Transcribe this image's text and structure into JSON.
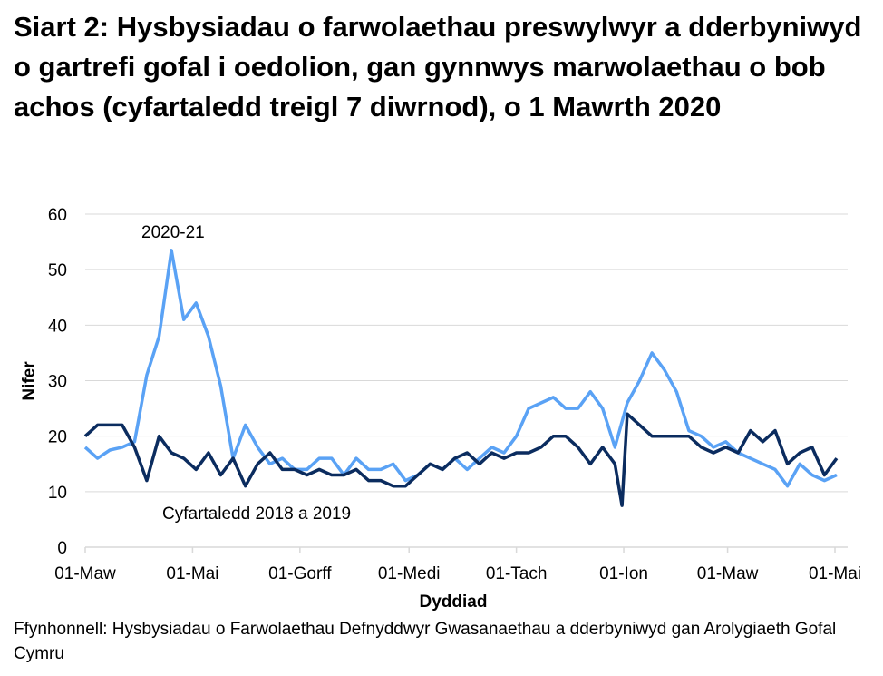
{
  "chart_data": {
    "type": "line",
    "title": "Siart 2: Hysbysiadau o farwolaethau preswylwyr a dderbyniwyd o gartrefi gofal i oedolion, gan gynnwys marwolaethau o bob achos (cyfartaledd treigl 7 diwrnod), o 1 Mawrth 2020",
    "xlabel": "Dyddiad",
    "ylabel": "Nifer",
    "ylim": [
      0,
      60
    ],
    "yticks": [
      0,
      10,
      20,
      30,
      40,
      50,
      60
    ],
    "xticks": [
      {
        "date": "2020-03-01",
        "label": "01-Maw"
      },
      {
        "date": "2020-05-01",
        "label": "01-Mai"
      },
      {
        "date": "2020-07-01",
        "label": "01-Gorff"
      },
      {
        "date": "2020-09-01",
        "label": "01-Medi"
      },
      {
        "date": "2020-11-01",
        "label": "01-Tach"
      },
      {
        "date": "2021-01-01",
        "label": "01-Ion"
      },
      {
        "date": "2021-03-01",
        "label": "01-Maw"
      },
      {
        "date": "2021-05-01",
        "label": "01-Mai"
      }
    ],
    "xlim": [
      "2020-03-01",
      "2021-05-05"
    ],
    "grid": "horizontal",
    "series": [
      {
        "name": "2020-21",
        "color": "#5aa2f5",
        "x": [
          "2020-03-01",
          "2020-03-08",
          "2020-03-15",
          "2020-03-22",
          "2020-03-29",
          "2020-04-05",
          "2020-04-12",
          "2020-04-19",
          "2020-04-26",
          "2020-05-03",
          "2020-05-10",
          "2020-05-17",
          "2020-05-24",
          "2020-05-31",
          "2020-06-07",
          "2020-06-14",
          "2020-06-21",
          "2020-06-28",
          "2020-07-05",
          "2020-07-12",
          "2020-07-19",
          "2020-07-26",
          "2020-08-02",
          "2020-08-09",
          "2020-08-16",
          "2020-08-23",
          "2020-08-30",
          "2020-09-06",
          "2020-09-13",
          "2020-09-20",
          "2020-09-27",
          "2020-10-04",
          "2020-10-11",
          "2020-10-18",
          "2020-10-25",
          "2020-11-01",
          "2020-11-08",
          "2020-11-15",
          "2020-11-22",
          "2020-11-29",
          "2020-12-06",
          "2020-12-13",
          "2020-12-20",
          "2020-12-27",
          "2021-01-03",
          "2021-01-10",
          "2021-01-17",
          "2021-01-24",
          "2021-01-31",
          "2021-02-07",
          "2021-02-14",
          "2021-02-21",
          "2021-02-28",
          "2021-03-07",
          "2021-03-14",
          "2021-03-21",
          "2021-03-28",
          "2021-04-04",
          "2021-04-11",
          "2021-04-18",
          "2021-04-25",
          "2021-05-02"
        ],
        "values": [
          18,
          16,
          17.5,
          18,
          19,
          31,
          38,
          53.5,
          41,
          44,
          38,
          29,
          16,
          22,
          18,
          15,
          16,
          14,
          14,
          16,
          16,
          13,
          16,
          14,
          14,
          15,
          12,
          13,
          15,
          14,
          16,
          14,
          16,
          18,
          17,
          20,
          25,
          26,
          27,
          25,
          25,
          28,
          25,
          18,
          26,
          30,
          35,
          32,
          28,
          21,
          20,
          18,
          19,
          17,
          16,
          15,
          14,
          11,
          15,
          13,
          12,
          13
        ]
      },
      {
        "name": "Cyfartaledd 2018 a 2019",
        "color": "#0b2c5f",
        "x": [
          "2020-03-01",
          "2020-03-08",
          "2020-03-15",
          "2020-03-22",
          "2020-03-29",
          "2020-04-05",
          "2020-04-12",
          "2020-04-19",
          "2020-04-26",
          "2020-05-03",
          "2020-05-10",
          "2020-05-17",
          "2020-05-24",
          "2020-05-31",
          "2020-06-07",
          "2020-06-14",
          "2020-06-21",
          "2020-06-28",
          "2020-07-05",
          "2020-07-12",
          "2020-07-19",
          "2020-07-26",
          "2020-08-02",
          "2020-08-09",
          "2020-08-16",
          "2020-08-23",
          "2020-08-30",
          "2020-09-06",
          "2020-09-13",
          "2020-09-20",
          "2020-09-27",
          "2020-10-04",
          "2020-10-11",
          "2020-10-18",
          "2020-10-25",
          "2020-11-01",
          "2020-11-08",
          "2020-11-15",
          "2020-11-22",
          "2020-11-29",
          "2020-12-06",
          "2020-12-13",
          "2020-12-20",
          "2020-12-27",
          "2020-12-31",
          "2021-01-03",
          "2021-01-10",
          "2021-01-17",
          "2021-01-24",
          "2021-01-31",
          "2021-02-07",
          "2021-02-14",
          "2021-02-21",
          "2021-02-28",
          "2021-03-07",
          "2021-03-14",
          "2021-03-21",
          "2021-03-28",
          "2021-04-04",
          "2021-04-11",
          "2021-04-18",
          "2021-04-25",
          "2021-05-02"
        ],
        "values": [
          20,
          22,
          22,
          22,
          18,
          12,
          20,
          17,
          16,
          14,
          17,
          13,
          16,
          11,
          15,
          17,
          14,
          14,
          13,
          14,
          13,
          13,
          14,
          12,
          12,
          11,
          11,
          13,
          15,
          14,
          16,
          17,
          15,
          17,
          16,
          17,
          17,
          18,
          20,
          20,
          18,
          15,
          18,
          15,
          7.5,
          24,
          22,
          20,
          20,
          20,
          20,
          18,
          17,
          18,
          17,
          21,
          19,
          21,
          15,
          17,
          18,
          13,
          16
        ]
      }
    ],
    "annotations": [
      {
        "text": "2020-21",
        "series": "2020-21"
      },
      {
        "text": "Cyfartaledd 2018 a 2019",
        "series": "Cyfartaledd 2018 a 2019"
      }
    ]
  },
  "source": "Ffynhonnell: Hysbysiadau o Farwolaethau Defnyddwyr Gwasanaethau a dderbyniwyd gan Arolygiaeth Gofal Cymru"
}
